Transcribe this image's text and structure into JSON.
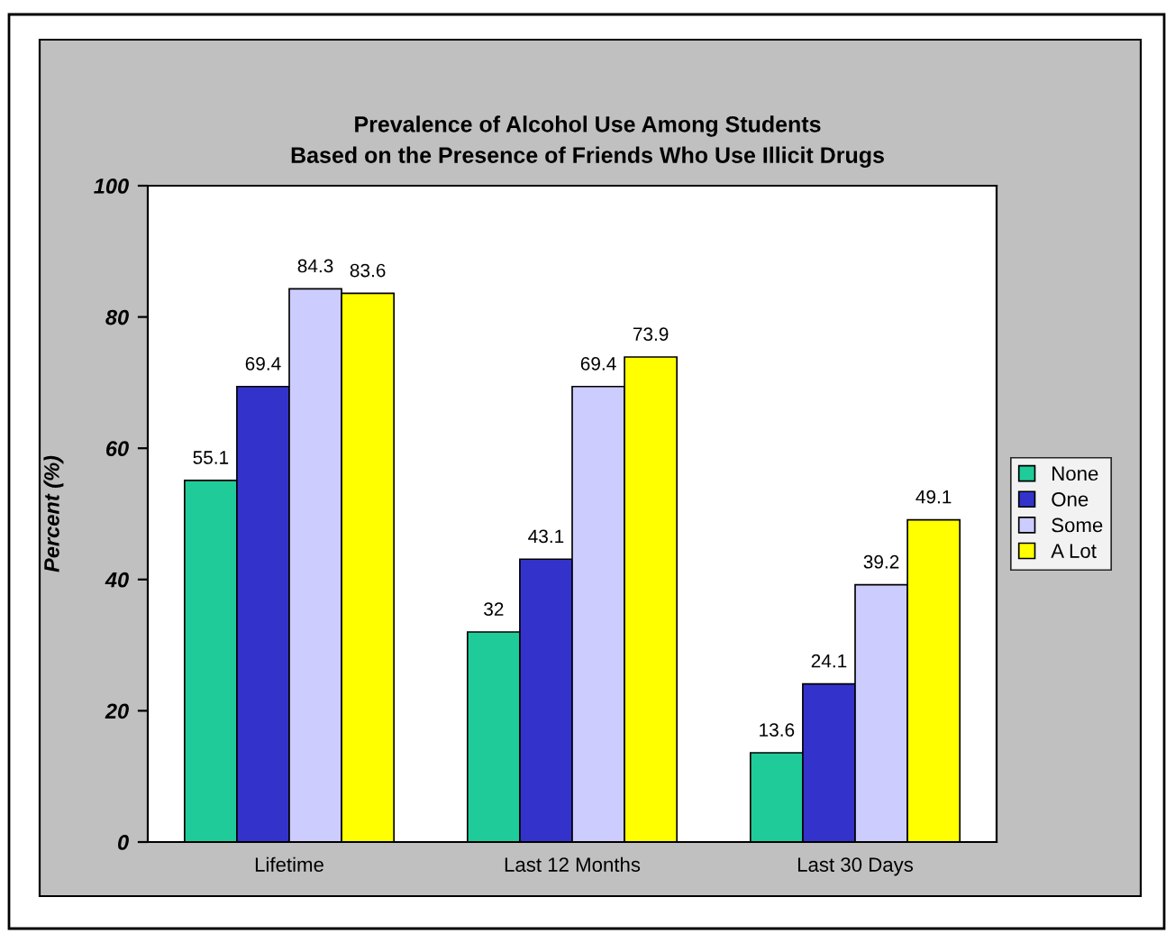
{
  "chart_data": {
    "type": "bar",
    "title": "Prevalence of Alcohol Use Among Students\nBased on the Presence of Friends Who Use Illicit Drugs",
    "ylabel": "Percent (%)",
    "categories": [
      "Lifetime",
      "Last 12 Months",
      "Last 30 Days"
    ],
    "series": [
      {
        "name": "None",
        "color": "#1fcc99",
        "values": [
          55.1,
          32,
          13.6
        ]
      },
      {
        "name": "One",
        "color": "#3333cc",
        "values": [
          69.4,
          43.1,
          24.1
        ]
      },
      {
        "name": "Some",
        "color": "#ccccff",
        "values": [
          84.3,
          69.4,
          39.2
        ]
      },
      {
        "name": "A Lot",
        "color": "#ffff00",
        "values": [
          83.6,
          73.9,
          49.1
        ]
      }
    ],
    "ylim": [
      0,
      100
    ],
    "yticks": [
      0,
      20,
      40,
      60,
      80,
      100
    ],
    "grid": false,
    "legend": "right",
    "data_labels": true
  }
}
